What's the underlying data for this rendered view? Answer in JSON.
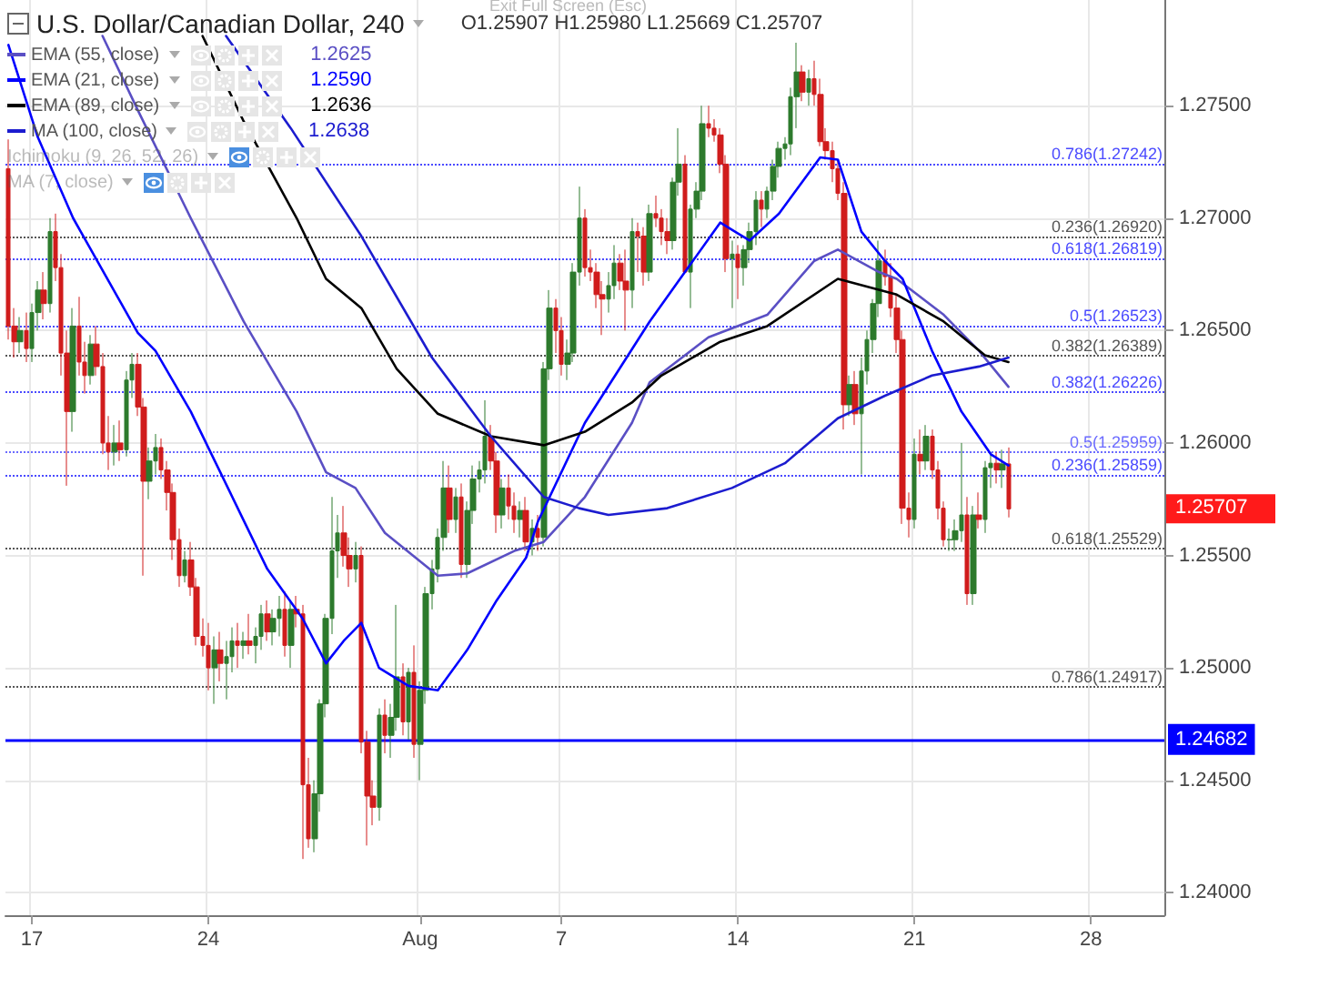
{
  "chart_data": {
    "type": "candlestick",
    "title": "U.S. Dollar/Canadian Dollar, 240",
    "subtitle": "O1.25907 H1.25980 L1.25669 C1.25707",
    "categories": [
      null,
      null,
      null,
      null,
      "17",
      null,
      null,
      null,
      null,
      null,
      null,
      null,
      null,
      null,
      null,
      null,
      null,
      null,
      null,
      null,
      null,
      null,
      null,
      null,
      null,
      null,
      null,
      null,
      null,
      null,
      null,
      null,
      null,
      null,
      "24",
      null,
      null,
      null,
      null,
      null,
      null,
      null,
      null,
      null,
      null,
      null,
      null,
      null,
      null,
      null,
      null,
      null,
      null,
      null,
      null,
      null,
      null,
      null,
      null,
      null,
      null,
      null,
      null,
      null,
      null,
      null,
      null,
      null,
      null,
      null,
      "Aug",
      null,
      null,
      null,
      null,
      null,
      null,
      null,
      null,
      null,
      null,
      null,
      null,
      null,
      null,
      null,
      null,
      null,
      null,
      null,
      null,
      null,
      null,
      null,
      "7",
      null,
      null,
      null,
      null,
      null,
      null,
      null,
      null,
      null,
      null,
      null,
      null,
      null,
      null,
      null,
      null,
      null,
      null,
      null,
      null,
      null,
      null,
      null,
      null,
      null,
      null,
      null,
      null,
      null,
      "14",
      null,
      null,
      null,
      null,
      null,
      null,
      null,
      null,
      null,
      null,
      null,
      null,
      null,
      null,
      null,
      null,
      null,
      null,
      null,
      null,
      null,
      null,
      null,
      null,
      null,
      null,
      null,
      null,
      null,
      "21",
      null,
      null,
      null,
      null,
      null,
      null,
      null,
      null,
      null,
      null,
      null,
      null,
      null,
      null,
      null,
      null,
      null,
      null,
      null,
      null,
      null,
      null,
      null,
      null,
      null,
      null,
      null,
      null,
      null,
      "28",
      null,
      null,
      null,
      null,
      null,
      null,
      null,
      null,
      null,
      null,
      null,
      null
    ],
    "ohlc": [
      [
        1.2722,
        1.2735,
        1.2646,
        1.2652
      ],
      [
        1.2652,
        1.266,
        1.2638,
        1.2645
      ],
      [
        1.2645,
        1.2656,
        1.264,
        1.265
      ],
      [
        1.265,
        1.2658,
        1.2636,
        1.2642
      ],
      [
        1.2642,
        1.2662,
        1.2636,
        1.2658
      ],
      [
        1.2658,
        1.2672,
        1.265,
        1.2668
      ],
      [
        1.2668,
        1.2676,
        1.2655,
        1.2662
      ],
      [
        1.2662,
        1.27,
        1.2658,
        1.2694
      ],
      [
        1.2694,
        1.2702,
        1.2672,
        1.2678
      ],
      [
        1.2678,
        1.2684,
        1.263,
        1.264
      ],
      [
        1.264,
        1.265,
        1.2581,
        1.2614
      ],
      [
        1.2614,
        1.266,
        1.2605,
        1.2652
      ],
      [
        1.2652,
        1.2665,
        1.263,
        1.2636
      ],
      [
        1.2636,
        1.2645,
        1.2622,
        1.263
      ],
      [
        1.263,
        1.2648,
        1.2626,
        1.2644
      ],
      [
        1.2644,
        1.2652,
        1.263,
        1.2634
      ],
      [
        1.2634,
        1.264,
        1.2595,
        1.26
      ],
      [
        1.26,
        1.2612,
        1.2588,
        1.2596
      ],
      [
        1.2596,
        1.2608,
        1.259,
        1.26
      ],
      [
        1.26,
        1.261,
        1.2592,
        1.2597
      ],
      [
        1.2597,
        1.2632,
        1.2594,
        1.2628
      ],
      [
        1.2628,
        1.264,
        1.262,
        1.2635
      ],
      [
        1.2635,
        1.264,
        1.2612,
        1.2616
      ],
      [
        1.2616,
        1.262,
        1.2541,
        1.2583
      ],
      [
        1.2583,
        1.2598,
        1.2575,
        1.2592
      ],
      [
        1.2592,
        1.2604,
        1.2586,
        1.2598
      ],
      [
        1.2598,
        1.2602,
        1.2584,
        1.2588
      ],
      [
        1.2588,
        1.2592,
        1.257,
        1.2578
      ],
      [
        1.2578,
        1.2582,
        1.2548,
        1.2557
      ],
      [
        1.2557,
        1.2562,
        1.2536,
        1.2541
      ],
      [
        1.2541,
        1.2552,
        1.2538,
        1.2548
      ],
      [
        1.2548,
        1.2556,
        1.2532,
        1.2536
      ],
      [
        1.2536,
        1.254,
        1.251,
        1.2514
      ],
      [
        1.2514,
        1.2522,
        1.2505,
        1.251
      ],
      [
        1.251,
        1.252,
        1.249,
        1.25
      ],
      [
        1.25,
        1.2514,
        1.2484,
        1.2508
      ],
      [
        1.2508,
        1.2516,
        1.2494,
        1.2502
      ],
      [
        1.2502,
        1.2512,
        1.2486,
        1.2505
      ],
      [
        1.2505,
        1.2518,
        1.2498,
        1.2512
      ],
      [
        1.2512,
        1.252,
        1.25,
        1.251
      ],
      [
        1.251,
        1.2516,
        1.2504,
        1.2512
      ],
      [
        1.2512,
        1.2524,
        1.2506,
        1.251
      ],
      [
        1.251,
        1.2518,
        1.2502,
        1.2514
      ],
      [
        1.2514,
        1.2528,
        1.2508,
        1.2524
      ],
      [
        1.2524,
        1.253,
        1.2512,
        1.2516
      ],
      [
        1.2516,
        1.2526,
        1.251,
        1.2522
      ],
      [
        1.2522,
        1.2532,
        1.2514,
        1.2526
      ],
      [
        1.2526,
        1.2534,
        1.2505,
        1.251
      ],
      [
        1.251,
        1.253,
        1.25,
        1.2526
      ],
      [
        1.2526,
        1.2532,
        1.2518,
        1.2524
      ],
      [
        1.2524,
        1.2528,
        1.2415,
        1.2448
      ],
      [
        1.2448,
        1.246,
        1.242,
        1.2424
      ],
      [
        1.2424,
        1.245,
        1.2418,
        1.2444
      ],
      [
        1.2444,
        1.2486,
        1.2436,
        1.2484
      ],
      [
        1.2484,
        1.2524,
        1.2478,
        1.2522
      ],
      [
        1.2522,
        1.2576,
        1.2515,
        1.2552
      ],
      [
        1.2552,
        1.2568,
        1.254,
        1.256
      ],
      [
        1.256,
        1.2572,
        1.2545,
        1.255
      ],
      [
        1.255,
        1.2558,
        1.2536,
        1.2544
      ],
      [
        1.2544,
        1.2556,
        1.2538,
        1.255
      ],
      [
        1.255,
        1.2554,
        1.2462,
        1.2467
      ],
      [
        1.2467,
        1.2472,
        1.2421,
        1.2443
      ],
      [
        1.2443,
        1.245,
        1.243,
        1.2438
      ],
      [
        1.2438,
        1.2482,
        1.2432,
        1.2479
      ],
      [
        1.2479,
        1.2486,
        1.2462,
        1.247
      ],
      [
        1.247,
        1.2484,
        1.246,
        1.2478
      ],
      [
        1.2478,
        1.2528,
        1.2472,
        1.2496
      ],
      [
        1.2496,
        1.2502,
        1.247,
        1.2476
      ],
      [
        1.2476,
        1.25,
        1.2468,
        1.2498
      ],
      [
        1.2498,
        1.251,
        1.246,
        1.2466
      ],
      [
        1.2466,
        1.2494,
        1.245,
        1.249
      ],
      [
        1.249,
        1.2536,
        1.2484,
        1.2533
      ],
      [
        1.2533,
        1.2548,
        1.2526,
        1.2544
      ],
      [
        1.2544,
        1.2562,
        1.2538,
        1.2558
      ],
      [
        1.2558,
        1.2592,
        1.2552,
        1.258
      ],
      [
        1.258,
        1.259,
        1.256,
        1.2566
      ],
      [
        1.2566,
        1.258,
        1.256,
        1.2576
      ],
      [
        1.2576,
        1.2582,
        1.254,
        1.2546
      ],
      [
        1.2546,
        1.2574,
        1.254,
        1.257
      ],
      [
        1.257,
        1.259,
        1.2564,
        1.2584
      ],
      [
        1.2584,
        1.2592,
        1.2578,
        1.2588
      ],
      [
        1.2588,
        1.2619,
        1.2582,
        1.2603
      ],
      [
        1.2603,
        1.2608,
        1.2588,
        1.2592
      ],
      [
        1.2592,
        1.2596,
        1.256,
        1.2568
      ],
      [
        1.2568,
        1.2584,
        1.2562,
        1.258
      ],
      [
        1.258,
        1.2586,
        1.2566,
        1.2572
      ],
      [
        1.2572,
        1.2578,
        1.256,
        1.2566
      ],
      [
        1.2566,
        1.2574,
        1.2558,
        1.257
      ],
      [
        1.257,
        1.2576,
        1.2552,
        1.2556
      ],
      [
        1.2556,
        1.2566,
        1.255,
        1.2562
      ],
      [
        1.2562,
        1.2568,
        1.2552,
        1.2558
      ],
      [
        1.2558,
        1.2636,
        1.2554,
        1.2633
      ],
      [
        1.2633,
        1.2668,
        1.2628,
        1.266
      ],
      [
        1.266,
        1.2664,
        1.264,
        1.265
      ],
      [
        1.265,
        1.2656,
        1.263,
        1.2635
      ],
      [
        1.2635,
        1.2646,
        1.2628,
        1.264
      ],
      [
        1.264,
        1.268,
        1.2636,
        1.2676
      ],
      [
        1.2676,
        1.2714,
        1.267,
        1.27
      ],
      [
        1.27,
        1.2704,
        1.2674,
        1.2678
      ],
      [
        1.2678,
        1.2686,
        1.2672,
        1.2676
      ],
      [
        1.2676,
        1.268,
        1.266,
        1.2666
      ],
      [
        1.2666,
        1.2672,
        1.2648,
        1.2664
      ],
      [
        1.2664,
        1.2676,
        1.2658,
        1.267
      ],
      [
        1.267,
        1.2688,
        1.2664,
        1.268
      ],
      [
        1.268,
        1.2684,
        1.2668,
        1.2672
      ],
      [
        1.2672,
        1.2686,
        1.265,
        1.2668
      ],
      [
        1.2668,
        1.27,
        1.266,
        1.2694
      ],
      [
        1.2694,
        1.2698,
        1.2676,
        1.2692
      ],
      [
        1.2692,
        1.2696,
        1.267,
        1.2676
      ],
      [
        1.2676,
        1.2706,
        1.2672,
        1.2702
      ],
      [
        1.2702,
        1.271,
        1.2696,
        1.27
      ],
      [
        1.27,
        1.2704,
        1.2688,
        1.2694
      ],
      [
        1.2694,
        1.27,
        1.2684,
        1.269
      ],
      [
        1.269,
        1.2718,
        1.2686,
        1.2716
      ],
      [
        1.2716,
        1.274,
        1.271,
        1.2724
      ],
      [
        1.2724,
        1.2728,
        1.2676,
        1.2676
      ],
      [
        1.2676,
        1.2706,
        1.266,
        1.2704
      ],
      [
        1.2704,
        1.2716,
        1.27,
        1.2712
      ],
      [
        1.2712,
        1.275,
        1.2708,
        1.2742
      ],
      [
        1.2742,
        1.275,
        1.2736,
        1.274
      ],
      [
        1.274,
        1.2744,
        1.2734,
        1.2737
      ],
      [
        1.2737,
        1.274,
        1.272,
        1.2724
      ],
      [
        1.2724,
        1.2728,
        1.2676,
        1.2682
      ],
      [
        1.2682,
        1.269,
        1.266,
        1.2684
      ],
      [
        1.2684,
        1.2688,
        1.2664,
        1.2678
      ],
      [
        1.2678,
        1.2688,
        1.267,
        1.2686
      ],
      [
        1.2686,
        1.2698,
        1.268,
        1.2694
      ],
      [
        1.2694,
        1.2712,
        1.2688,
        1.2708
      ],
      [
        1.2708,
        1.2712,
        1.2696,
        1.2704
      ],
      [
        1.2704,
        1.2714,
        1.27,
        1.2712
      ],
      [
        1.2712,
        1.2726,
        1.2708,
        1.2723
      ],
      [
        1.2723,
        1.2734,
        1.2718,
        1.2731
      ],
      [
        1.2731,
        1.2736,
        1.2726,
        1.2733
      ],
      [
        1.2733,
        1.2758,
        1.2728,
        1.2754
      ],
      [
        1.2754,
        1.2778,
        1.274,
        1.2765
      ],
      [
        1.2765,
        1.2768,
        1.2752,
        1.2756
      ],
      [
        1.2756,
        1.2766,
        1.275,
        1.2762
      ],
      [
        1.2762,
        1.277,
        1.275,
        1.2755
      ],
      [
        1.2755,
        1.2762,
        1.2732,
        1.2734
      ],
      [
        1.2734,
        1.274,
        1.2726,
        1.273
      ],
      [
        1.273,
        1.2734,
        1.2716,
        1.2722
      ],
      [
        1.2722,
        1.2726,
        1.2708,
        1.2711
      ],
      [
        1.2711,
        1.2716,
        1.2606,
        1.2617
      ],
      [
        1.2617,
        1.263,
        1.2612,
        1.2626
      ],
      [
        1.2626,
        1.2632,
        1.2608,
        1.2613
      ],
      [
        1.2613,
        1.2638,
        1.2586,
        1.2632
      ],
      [
        1.2632,
        1.265,
        1.2626,
        1.2646
      ],
      [
        1.2646,
        1.2664,
        1.264,
        1.2662
      ],
      [
        1.2662,
        1.269,
        1.2656,
        1.2681
      ],
      [
        1.2681,
        1.2686,
        1.267,
        1.2674
      ],
      [
        1.2674,
        1.268,
        1.2656,
        1.266
      ],
      [
        1.266,
        1.2666,
        1.264,
        1.2646
      ],
      [
        1.2646,
        1.265,
        1.2564,
        1.2571
      ],
      [
        1.2571,
        1.2578,
        1.2558,
        1.2566
      ],
      [
        1.2566,
        1.2602,
        1.2562,
        1.2595
      ],
      [
        1.2595,
        1.2606,
        1.2586,
        1.2592
      ],
      [
        1.2592,
        1.2608,
        1.2588,
        1.2603
      ],
      [
        1.2603,
        1.2606,
        1.2584,
        1.2588
      ],
      [
        1.2588,
        1.2592,
        1.2566,
        1.2571
      ],
      [
        1.2571,
        1.2574,
        1.2554,
        1.2557
      ],
      [
        1.2557,
        1.2562,
        1.2552,
        1.2557
      ],
      [
        1.2557,
        1.2566,
        1.2552,
        1.2561
      ],
      [
        1.2561,
        1.26,
        1.2556,
        1.2568
      ],
      [
        1.2568,
        1.2576,
        1.2528,
        1.2533
      ],
      [
        1.2533,
        1.2572,
        1.2528,
        1.2568
      ],
      [
        1.2568,
        1.2578,
        1.2562,
        1.2566
      ],
      [
        1.2566,
        1.2592,
        1.256,
        1.2589
      ],
      [
        1.2589,
        1.2596,
        1.258,
        1.2591
      ],
      [
        1.2591,
        1.2596,
        1.2582,
        1.2588
      ],
      [
        1.2588,
        1.2597,
        1.258,
        1.25907
      ],
      [
        1.25907,
        1.2598,
        1.25669,
        1.25707
      ],
      null,
      null,
      null,
      null,
      null,
      null,
      null,
      null,
      null,
      null,
      null,
      null,
      null,
      null,
      null,
      null,
      null,
      null,
      null,
      null,
      null,
      null,
      null,
      null,
      null,
      null
    ],
    "series": [
      {
        "type": "line",
        "name": "EMA (55, close)",
        "color": "#5a4fc4",
        "values": [
          null,
          null,
          null,
          null,
          null,
          null,
          null,
          null,
          null,
          null,
          null,
          null,
          null,
          null,
          null,
          null,
          1.2781,
          null,
          null,
          null,
          null,
          null,
          1.2748,
          null,
          null,
          null,
          null,
          null,
          null,
          null,
          null,
          1.27,
          null,
          null,
          null,
          null,
          null,
          null,
          null,
          null,
          1.2654,
          null,
          null,
          null,
          null,
          null,
          null,
          null,
          null,
          1.2614,
          null,
          null,
          null,
          null,
          1.2587,
          null,
          null,
          null,
          null,
          1.258,
          null,
          null,
          null,
          null,
          1.256,
          null,
          null,
          null,
          null,
          null,
          null,
          null,
          null,
          1.2541,
          null,
          null,
          null,
          null,
          1.2542,
          null,
          null,
          null,
          null,
          null,
          null,
          null,
          1.2552,
          null,
          null,
          null,
          null,
          1.2556,
          null,
          null,
          null,
          null,
          null,
          null,
          1.2576,
          null,
          null,
          null,
          null,
          null,
          null,
          null,
          1.2609,
          null,
          null,
          1.2627,
          null,
          null,
          null,
          null,
          null,
          null,
          null,
          null,
          null,
          1.2647,
          null,
          null,
          null,
          null,
          null,
          null,
          null,
          null,
          null,
          1.2657,
          null,
          null,
          null,
          null,
          null,
          null,
          null,
          1.2681,
          null,
          null,
          null,
          1.2686,
          null,
          null,
          null,
          null,
          null,
          null,
          1.2676,
          null,
          null,
          1.2673,
          null,
          null,
          null,
          null,
          null,
          null,
          null,
          1.2657,
          null,
          null,
          null,
          null,
          null,
          1.2641,
          null,
          null,
          null,
          null,
          1.2625,
          null,
          null,
          null,
          null,
          null,
          null,
          null,
          null,
          null,
          null,
          null,
          null,
          null,
          null,
          null,
          null,
          null,
          null,
          null,
          null,
          null,
          null,
          null,
          null,
          null,
          null
        ]
      },
      {
        "type": "line",
        "name": "EMA (21, close)",
        "color": "#0000ff",
        "values": [
          1.2777,
          null,
          null,
          null,
          null,
          1.2736,
          null,
          null,
          null,
          null,
          null,
          1.27,
          null,
          null,
          null,
          null,
          null,
          null,
          null,
          null,
          null,
          null,
          1.2649,
          null,
          null,
          1.2641,
          null,
          null,
          null,
          null,
          null,
          1.2614,
          null,
          null,
          null,
          null,
          null,
          null,
          null,
          null,
          null,
          null,
          null,
          null,
          1.2544,
          null,
          null,
          null,
          null,
          null,
          1.2522,
          null,
          null,
          null,
          1.2502,
          null,
          null,
          1.2512,
          null,
          null,
          1.252,
          null,
          null,
          1.25,
          null,
          null,
          null,
          null,
          1.2492,
          null,
          null,
          null,
          null,
          1.249,
          null,
          null,
          null,
          null,
          1.2508,
          null,
          null,
          null,
          null,
          1.253,
          null,
          null,
          null,
          null,
          1.2549,
          null,
          1.2565,
          null,
          null,
          null,
          null,
          null,
          null,
          null,
          1.2609,
          null,
          null,
          null,
          null,
          null,
          null,
          null,
          null,
          null,
          null,
          1.2654,
          null,
          null,
          null,
          null,
          null,
          1.2676,
          null,
          null,
          null,
          null,
          null,
          1.2698,
          null,
          null,
          null,
          null,
          1.269,
          null,
          null,
          null,
          null,
          1.2702,
          null,
          null,
          null,
          null,
          null,
          null,
          1.2727,
          null,
          null,
          1.2726,
          null,
          null,
          null,
          1.2694,
          null,
          null,
          null,
          1.2681,
          null,
          null,
          1.2673,
          null,
          null,
          null,
          null,
          1.2641,
          null,
          null,
          null,
          null,
          1.2614,
          null,
          null,
          null,
          null,
          1.2595,
          null,
          null,
          1.259,
          null,
          null,
          null,
          null,
          null,
          null,
          null,
          null,
          null,
          null,
          null,
          null,
          null,
          null,
          null,
          null,
          null,
          null,
          null,
          null,
          null,
          null,
          null,
          null,
          null,
          null
        ]
      },
      {
        "type": "line",
        "name": "EMA (89, close)",
        "color": "#000000",
        "values": [
          null,
          null,
          null,
          null,
          null,
          null,
          null,
          null,
          null,
          null,
          null,
          null,
          null,
          null,
          null,
          null,
          null,
          null,
          null,
          null,
          null,
          null,
          null,
          null,
          null,
          null,
          null,
          null,
          null,
          null,
          null,
          null,
          null,
          1.2781,
          null,
          null,
          null,
          null,
          null,
          null,
          1.2743,
          null,
          null,
          null,
          null,
          null,
          null,
          null,
          null,
          1.27,
          null,
          null,
          null,
          null,
          1.2673,
          null,
          null,
          null,
          null,
          null,
          1.266,
          null,
          null,
          null,
          null,
          null,
          1.2633,
          null,
          null,
          null,
          null,
          null,
          null,
          1.2613,
          null,
          null,
          null,
          null,
          null,
          null,
          null,
          null,
          1.2603,
          null,
          null,
          null,
          null,
          null,
          null,
          null,
          null,
          1.2599,
          null,
          null,
          null,
          null,
          null,
          null,
          1.2605,
          null,
          null,
          null,
          null,
          null,
          null,
          null,
          1.2618,
          null,
          null,
          null,
          null,
          1.263,
          null,
          null,
          null,
          null,
          null,
          null,
          null,
          null,
          null,
          1.2645,
          null,
          null,
          null,
          null,
          null,
          null,
          null,
          1.2652,
          null,
          null,
          null,
          null,
          null,
          null,
          null,
          null,
          null,
          null,
          null,
          1.2673,
          null,
          null,
          null,
          null,
          null,
          null,
          null,
          null,
          null,
          1.2666,
          null,
          null,
          null,
          null,
          null,
          null,
          null,
          1.2654,
          null,
          null,
          null,
          null,
          null,
          null,
          1.2639,
          null,
          null,
          null,
          1.2636,
          null,
          null,
          null,
          null,
          null,
          null,
          null,
          null,
          null,
          null,
          null,
          null,
          null,
          null,
          null,
          null,
          null,
          null,
          null,
          null,
          null,
          null,
          null,
          null,
          null,
          null
        ]
      },
      {
        "type": "line",
        "name": "MA (100, close)",
        "color": "#1c1ccf",
        "values": [
          null,
          null,
          null,
          null,
          null,
          null,
          null,
          null,
          null,
          null,
          null,
          null,
          null,
          null,
          null,
          null,
          null,
          null,
          null,
          null,
          null,
          null,
          null,
          null,
          null,
          null,
          null,
          null,
          null,
          null,
          null,
          null,
          null,
          null,
          null,
          null,
          null,
          1.2781,
          null,
          null,
          null,
          null,
          null,
          null,
          null,
          null,
          null,
          null,
          1.274,
          null,
          null,
          null,
          null,
          null,
          null,
          null,
          null,
          null,
          null,
          null,
          1.2692,
          null,
          null,
          null,
          null,
          null,
          null,
          null,
          null,
          null,
          null,
          null,
          1.2638,
          null,
          null,
          null,
          null,
          null,
          null,
          null,
          null,
          null,
          1.2603,
          null,
          null,
          null,
          null,
          null,
          null,
          null,
          null,
          1.2576,
          null,
          null,
          null,
          null,
          null,
          1.2571,
          null,
          null,
          null,
          null,
          1.2568,
          null,
          null,
          null,
          null,
          null,
          null,
          null,
          null,
          null,
          1.2571,
          null,
          null,
          null,
          null,
          null,
          null,
          null,
          null,
          null,
          null,
          1.258,
          null,
          null,
          null,
          null,
          null,
          null,
          null,
          null,
          1.2591,
          null,
          null,
          null,
          null,
          null,
          null,
          null,
          null,
          1.2611,
          null,
          null,
          null,
          null,
          null,
          null,
          null,
          1.2621,
          null,
          null,
          null,
          null,
          null,
          null,
          null,
          1.263,
          null,
          null,
          null,
          null,
          null,
          null,
          null,
          1.2634,
          null,
          null,
          null,
          null,
          1.2638,
          null,
          null,
          null,
          null,
          null,
          null,
          null,
          null,
          null,
          null,
          null,
          null,
          null,
          null,
          null,
          null,
          null,
          null,
          null,
          null,
          null,
          null,
          null,
          null,
          null,
          null
        ]
      }
    ],
    "ylim": [
      1.239,
      1.2797
    ],
    "yticks": [
      {
        "value": 1.24,
        "label": "1.24000"
      },
      {
        "value": 1.245,
        "label": "1.24500"
      },
      {
        "value": 1.25,
        "label": "1.25000"
      },
      {
        "value": 1.255,
        "label": "1.25500"
      },
      {
        "value": 1.26,
        "label": "1.26000"
      },
      {
        "value": 1.265,
        "label": "1.26500"
      },
      {
        "value": 1.27,
        "label": "1.27000"
      },
      {
        "value": 1.275,
        "label": "1.27500"
      }
    ],
    "grid": true,
    "marker": "none",
    "line_style": "solid",
    "legend": "top left",
    "ref_lines": [
      {
        "axis": "y",
        "value": 1.24682,
        "label": "1.24682",
        "color": "#0000ff",
        "line_style": "solid"
      },
      {
        "axis": "y",
        "value": 1.2692,
        "label": "0.236(1.26920)",
        "color": "#555555",
        "line_style": "dotted"
      },
      {
        "axis": "y",
        "value": 1.26389,
        "label": "0.382(1.26389)",
        "color": "#555555",
        "line_style": "dotted"
      },
      {
        "axis": "y",
        "value": 1.25959,
        "label": "0.5(1.25959)",
        "color": "#6b6bff",
        "line_style": "dotted"
      },
      {
        "axis": "y",
        "value": 1.25529,
        "label": "0.618(1.25529)",
        "color": "#555555",
        "line_style": "dotted"
      },
      {
        "axis": "y",
        "value": 1.24917,
        "label": "0.786(1.24917)",
        "color": "#555555",
        "line_style": "dotted"
      },
      {
        "axis": "y",
        "value": 1.27242,
        "label": "0.786(1.27242)",
        "color": "#4a4aff",
        "line_style": "dotted"
      },
      {
        "axis": "y",
        "value": 1.26819,
        "label": "0.618(1.26819)",
        "color": "#4a4aff",
        "line_style": "dotted"
      },
      {
        "axis": "y",
        "value": 1.26523,
        "label": "0.5(1.26523)",
        "color": "#4a4aff",
        "line_style": "dotted"
      },
      {
        "axis": "y",
        "value": 1.26226,
        "label": "0.382(1.26226)",
        "color": "#4a4aff",
        "line_style": "dotted"
      },
      {
        "axis": "y",
        "value": 1.25859,
        "label": "0.236(1.25859)",
        "color": "#4a4aff",
        "line_style": "dotted"
      }
    ],
    "annotations": [
      "1.2625",
      "1.2590",
      "1.2636",
      "1.2638",
      "Exit Full Screen (Esc)",
      "Ichimoku (9, 26, 52, 26)",
      "MA (7, close)",
      "1.25707"
    ]
  }
}
